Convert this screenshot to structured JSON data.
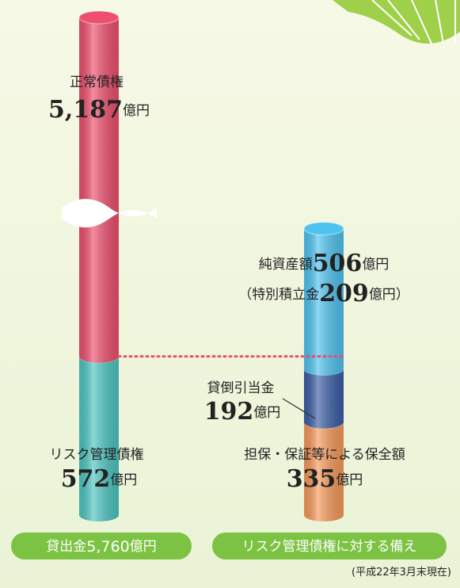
{
  "chart_data": {
    "type": "stacked-cylinder",
    "unit": "億円",
    "columns": [
      {
        "label": "貸出金",
        "total": 5760,
        "total_label": "5,760",
        "segments": [
          {
            "name": "リスク管理債権",
            "value": 572,
            "color": "#4cc6c2"
          },
          {
            "name": "正常債権",
            "value": 5187,
            "value_label": "5,187",
            "color": "#ee4f6e",
            "broken": true
          }
        ]
      },
      {
        "label": "リスク管理債権に対する備え",
        "segments": [
          {
            "name": "担保・保証等による保全額",
            "value": 335,
            "color": "#f7995a"
          },
          {
            "name": "貸倒引当金",
            "value": 192,
            "color": "#3b5da6"
          },
          {
            "name": "純資産額",
            "value": 506,
            "color": "#4fc3f0"
          }
        ]
      }
    ],
    "note": {
      "open": "（",
      "label": "特別積立金",
      "value": 209,
      "close": "）"
    },
    "footnote": "(平成22年3月末現在)"
  }
}
